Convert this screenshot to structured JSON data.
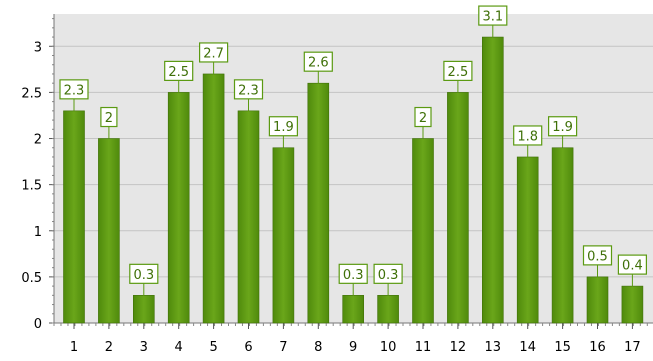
{
  "chart_data": {
    "type": "bar",
    "categories": [
      "1",
      "2",
      "3",
      "4",
      "5",
      "6",
      "7",
      "8",
      "9",
      "10",
      "11",
      "12",
      "13",
      "14",
      "15",
      "16",
      "17"
    ],
    "values": [
      2.3,
      2,
      0.3,
      2.5,
      2.7,
      2.3,
      1.9,
      2.6,
      0.3,
      0.3,
      2,
      2.5,
      3.1,
      1.8,
      1.9,
      0.5,
      0.4
    ],
    "data_labels": [
      "2.3",
      "2",
      "0.3",
      "2.5",
      "2.7",
      "2.3",
      "1.9",
      "2.6",
      "0.3",
      "0.3",
      "2",
      "2.5",
      "3.1",
      "1.8",
      "1.9",
      "0.5",
      "0.4"
    ],
    "y_ticks": [
      0,
      0.5,
      1,
      1.5,
      2,
      2.5,
      3
    ],
    "y_tick_labels": [
      "0",
      "0.5",
      "1",
      "1.5",
      "2",
      "2.5",
      "3"
    ],
    "ylim": [
      0,
      3.35
    ],
    "grid": true,
    "title": "",
    "xlabel": "",
    "ylabel": "",
    "colors": {
      "bar_top": "#6aa61a",
      "bar_bottom": "#4f8a0c",
      "bar_stroke": "#3f7008",
      "label_border": "#5b9a12",
      "label_text": "#3f7008",
      "plot_bg": "#e6e6e6",
      "grid": "#c4c4c4",
      "axis_text": "#000000"
    }
  }
}
